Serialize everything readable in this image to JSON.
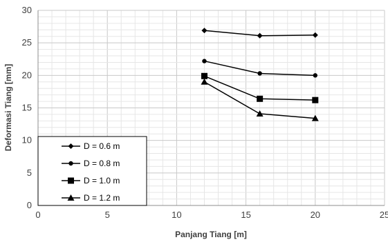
{
  "chart_data": {
    "type": "line",
    "title": "",
    "xlabel": "Panjang Tiang [m]",
    "ylabel": "Deformasi Tiang [mm]",
    "xlim": [
      0,
      25
    ],
    "ylim": [
      0,
      30
    ],
    "xticks": [
      "0",
      "5",
      "10",
      "15",
      "20",
      "25"
    ],
    "yticks": [
      "0",
      "5",
      "10",
      "15",
      "20",
      "25",
      "30"
    ],
    "grid": true,
    "legend_position": "bottom-left",
    "series": [
      {
        "name": "D = 0.6 m",
        "marker": "diamond",
        "color": "#000000",
        "x": [
          12,
          16,
          20
        ],
        "y": [
          26.9,
          26.1,
          26.2
        ]
      },
      {
        "name": "D = 0.8 m",
        "marker": "circle",
        "color": "#000000",
        "x": [
          12,
          16,
          20
        ],
        "y": [
          22.2,
          20.3,
          20.0
        ]
      },
      {
        "name": "D = 1.0 m",
        "marker": "square",
        "color": "#000000",
        "x": [
          12,
          16,
          20
        ],
        "y": [
          19.9,
          16.4,
          16.2
        ]
      },
      {
        "name": "D = 1.2 m",
        "marker": "triangle",
        "color": "#000000",
        "x": [
          12,
          16,
          20
        ],
        "y": [
          19.0,
          14.1,
          13.4
        ]
      }
    ]
  }
}
